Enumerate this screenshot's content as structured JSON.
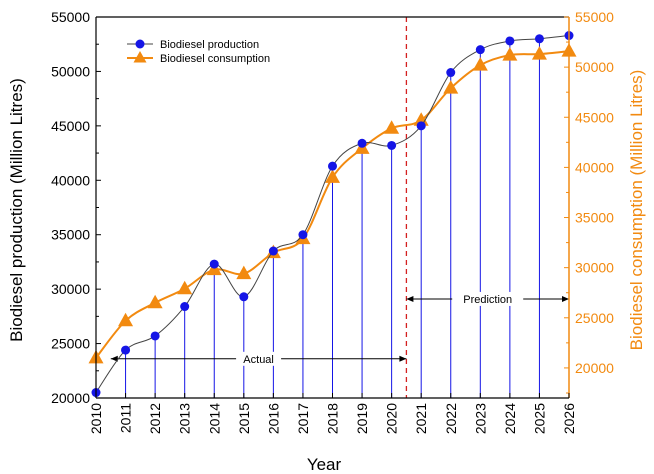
{
  "chart_data": {
    "type": "line",
    "xlabel": "Year",
    "ylabel_left": "Biodiesel production (Million Litres)",
    "ylabel_right": "Biodiesel consumption (Million Litres)",
    "x": [
      2010,
      2011,
      2012,
      2013,
      2014,
      2015,
      2016,
      2017,
      2018,
      2019,
      2020,
      2021,
      2022,
      2023,
      2024,
      2025,
      2026
    ],
    "xlim": [
      2010,
      2026
    ],
    "ylim_left": [
      20000,
      55000
    ],
    "ylim_right": [
      17000,
      55000
    ],
    "yticks_left": [
      20000,
      25000,
      30000,
      35000,
      40000,
      45000,
      50000,
      55000
    ],
    "yticks_right": [
      20000,
      25000,
      30000,
      35000,
      40000,
      45000,
      50000,
      55000
    ],
    "series": [
      {
        "name": "Biodiesel production",
        "axis": "left",
        "color": "#444444",
        "marker_color": "#1515e6",
        "marker": "circle",
        "x": [
          2010,
          2011,
          2012,
          2013,
          2014,
          2015,
          2016,
          2017,
          2018,
          2019,
          2020,
          2021,
          2022,
          2023,
          2024,
          2025,
          2026
        ],
        "values": [
          20500,
          24400,
          25700,
          28400,
          32300,
          29300,
          33500,
          35000,
          41300,
          43400,
          43200,
          45000,
          49900,
          52000,
          52800,
          53000,
          53300
        ]
      },
      {
        "name": "Biodiesel consumption",
        "axis": "right",
        "color": "#f28a10",
        "marker_color": "#f28a10",
        "marker": "triangle",
        "x": [
          2010,
          2011,
          2012,
          2013,
          2014,
          2015,
          2016,
          2017,
          2018,
          2019,
          2020,
          2021,
          2022,
          2023,
          2024,
          2025,
          2026
        ],
        "values": [
          21000,
          24700,
          26500,
          27900,
          29800,
          29400,
          31500,
          32900,
          39000,
          41900,
          43900,
          44700,
          47900,
          50200,
          51200,
          51300,
          51600
        ]
      }
    ],
    "divider_x": 2020.5,
    "divider_color": "#d42020",
    "drop_line_color": "#1515e6",
    "annotations": [
      {
        "text": "Actual",
        "from": 2010.5,
        "to": 2020.5,
        "y_left": 23600
      },
      {
        "text": "Prediction",
        "from": 2020.5,
        "to": 2026,
        "y_left": 29100
      }
    ],
    "legend_position": "top-left",
    "grid": false
  }
}
